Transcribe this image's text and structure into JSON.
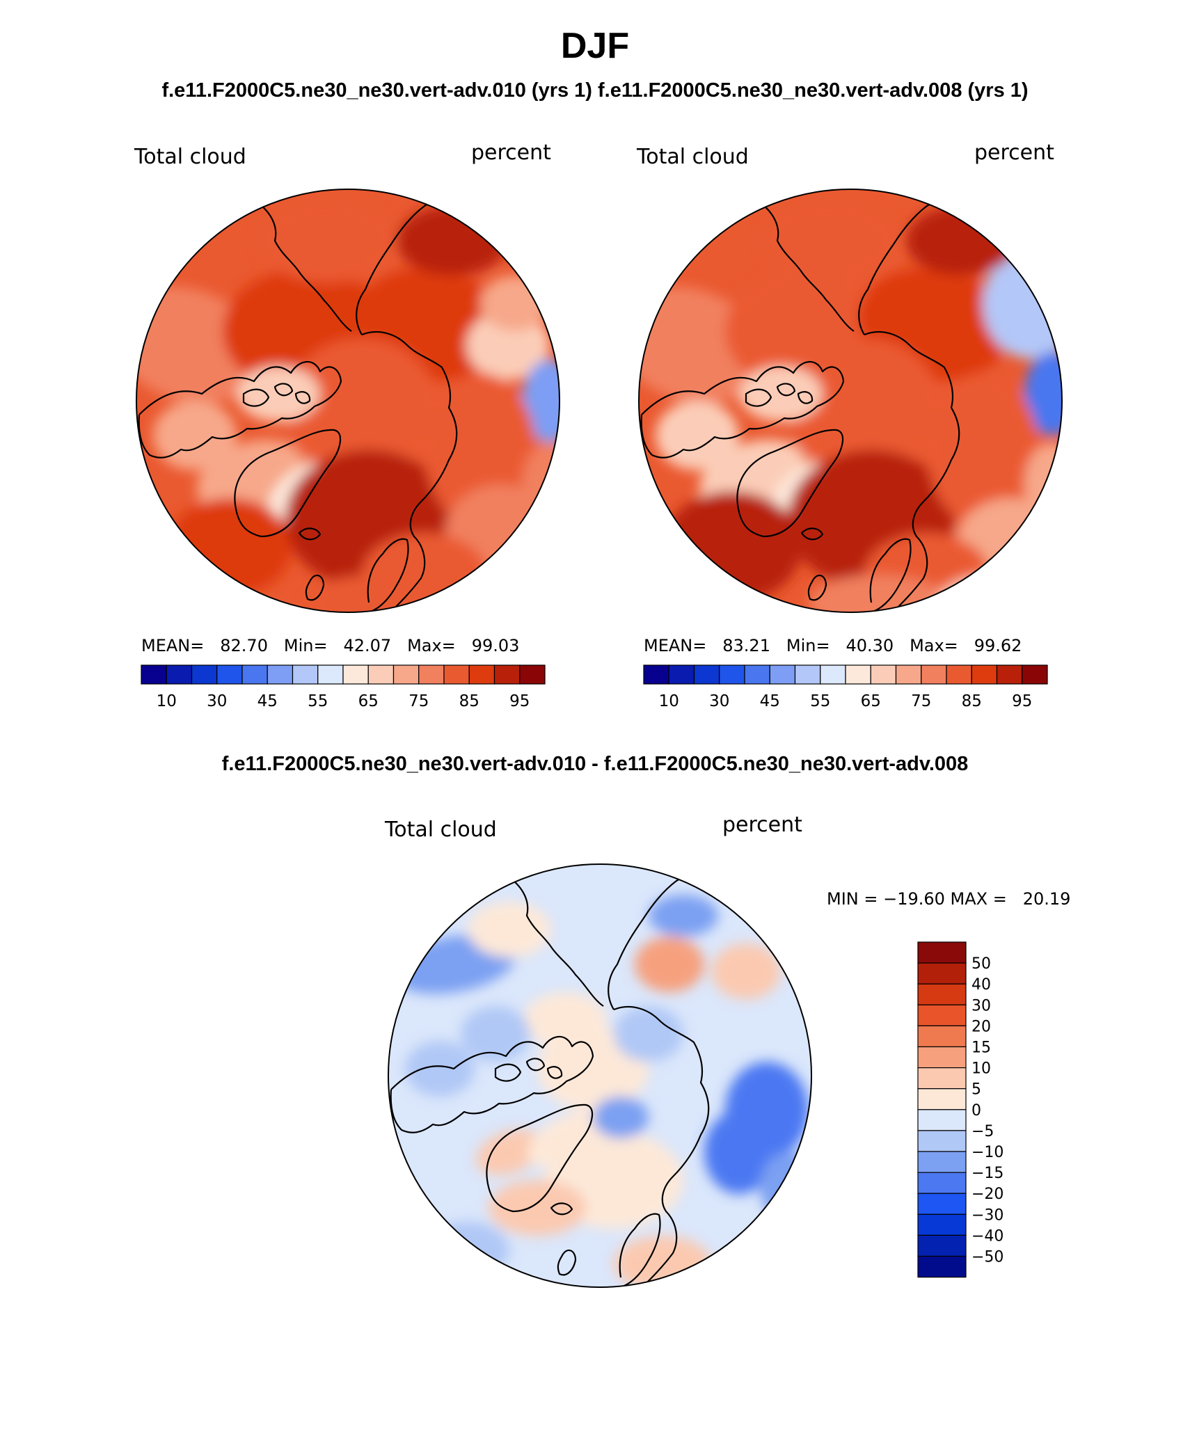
{
  "page": {
    "season": "DJF",
    "subtitle": "f.e11.F2000C5.ne30_ne30.vert-adv.010 (yrs 1) f.e11.F2000C5.ne30_ne30.vert-adv.008 (yrs 1)",
    "diff_title": "f.e11.F2000C5.ne30_ne30.vert-adv.010 - f.e11.F2000C5.ne30_ne30.vert-adv.008"
  },
  "colors": {
    "abs_palette": [
      "#08008f",
      "#0a1bb0",
      "#0c37d0",
      "#1f55ea",
      "#4a77f0",
      "#7d9ef4",
      "#b3c7f8",
      "#dce8fb",
      "#fde9dc",
      "#fbcdb8",
      "#f7a88a",
      "#f1805f",
      "#ea5a31",
      "#de3b0f",
      "#b8200a",
      "#8a0606"
    ],
    "diff_palette": [
      "#000c8c",
      "#0322b2",
      "#0639d6",
      "#1d56f2",
      "#4c78f2",
      "#7ca0f2",
      "#b0c8f6",
      "#dbe7fb",
      "#fde8d8",
      "#fbc9b0",
      "#f6a07e",
      "#ef7a4f",
      "#e9542a",
      "#d53a12",
      "#b3200a",
      "#8a0a0a"
    ]
  },
  "chart_data": [
    {
      "type": "heatmap",
      "panel": "left",
      "title": "Total cloud",
      "units": "percent",
      "projection": "north polar stereographic",
      "stats": {
        "mean_label": "MEAN=",
        "mean": "82.70",
        "min_label": "Min=",
        "min": "42.07",
        "max_label": "Max=",
        "max": "99.03"
      },
      "levels": [
        10,
        20,
        30,
        40,
        45,
        50,
        55,
        60,
        65,
        70,
        75,
        80,
        85,
        90,
        95
      ],
      "tick_labels": [
        "10",
        "30",
        "45",
        "55",
        "65",
        "75",
        "85",
        "95"
      ],
      "tick_levels": [
        10,
        30,
        45,
        55,
        65,
        75,
        85,
        95
      ],
      "value_range": [
        42.07,
        99.03
      ]
    },
    {
      "type": "heatmap",
      "panel": "right",
      "title": "Total cloud",
      "units": "percent",
      "projection": "north polar stereographic",
      "stats": {
        "mean_label": "MEAN=",
        "mean": "83.21",
        "min_label": "Min=",
        "min": "40.30",
        "max_label": "Max=",
        "max": "99.62"
      },
      "levels": [
        10,
        20,
        30,
        40,
        45,
        50,
        55,
        60,
        65,
        70,
        75,
        80,
        85,
        90,
        95
      ],
      "tick_labels": [
        "10",
        "30",
        "45",
        "55",
        "65",
        "75",
        "85",
        "95"
      ],
      "tick_levels": [
        10,
        30,
        45,
        55,
        65,
        75,
        85,
        95
      ],
      "value_range": [
        40.3,
        99.62
      ]
    },
    {
      "type": "heatmap",
      "panel": "difference",
      "title": "Total cloud",
      "units": "percent",
      "projection": "north polar stereographic",
      "stats_text": "MIN = −19.60 MAX =   20.19",
      "levels": [
        -50,
        -40,
        -30,
        -20,
        -15,
        -10,
        -5,
        0,
        5,
        10,
        15,
        20,
        30,
        40,
        50
      ],
      "level_labels": [
        "50",
        "40",
        "30",
        "20",
        "15",
        "10",
        "5",
        "0",
        "−5",
        "−10",
        "−15",
        "−20",
        "−30",
        "−40",
        "−50"
      ],
      "value_range": [
        -19.6,
        20.19
      ]
    }
  ]
}
